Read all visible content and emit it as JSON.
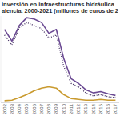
{
  "chart_data": {
    "type": "line",
    "title": "inversión en infraestructuras hidráulica",
    "subtitle": "alencia. 2000-2021 (millones de euros de 2",
    "categories": [
      "2002",
      "2003",
      "2004",
      "2005",
      "2006",
      "2007",
      "2008",
      "2009",
      "2010",
      "2011",
      "2012",
      "2013",
      "2014",
      "2015",
      "2016",
      "2017"
    ],
    "series": [
      {
        "color": "#6b4a93",
        "line_style": "solid",
        "values": [
          169,
          142,
          178,
          196,
          193,
          185,
          160,
          169,
          102,
          55,
          44,
          29,
          22,
          25,
          20,
          16
        ]
      },
      {
        "color": "#3f2b5e",
        "line_style": "dotted",
        "values": [
          156,
          133,
          173,
          185,
          178,
          171,
          149,
          156,
          84,
          44,
          36,
          22,
          15,
          18,
          13,
          11
        ]
      },
      {
        "color": "#c99a2e",
        "line_style": "solid",
        "values": [
          4,
          5,
          11,
          18,
          27,
          33,
          36,
          33,
          18,
          9,
          7,
          5,
          5,
          7,
          5,
          5
        ]
      }
    ],
    "ylim": [
      0,
      200
    ],
    "grid": false,
    "tick_labels": "x"
  }
}
